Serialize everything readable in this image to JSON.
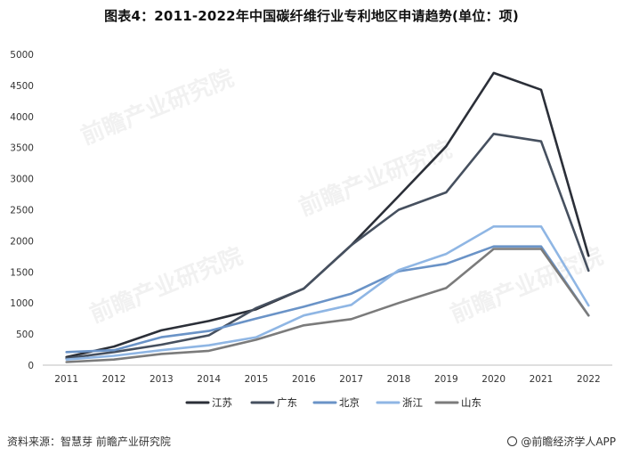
{
  "title": "图表4：2011-2022年中国碳纤维行业专利地区申请趋势(单位：项)",
  "footer": {
    "source": "资料来源：智慧芽 前瞻产业研究院",
    "brand": "@前瞻经济学人APP"
  },
  "watermark": "前瞻产业研究院",
  "chart_data": {
    "type": "line",
    "title": "图表4：2011-2022年中国碳纤维行业专利地区申请趋势(单位：项)",
    "xlabel": "",
    "ylabel": "",
    "x": [
      "2011",
      "2012",
      "2013",
      "2014",
      "2015",
      "2016",
      "2017",
      "2018",
      "2019",
      "2020",
      "2021",
      "2022"
    ],
    "ylim": [
      0,
      5000
    ],
    "yticks": [
      0,
      500,
      1000,
      1500,
      2000,
      2500,
      3000,
      3500,
      4000,
      4500,
      5000
    ],
    "grid": false,
    "legend_position": "bottom",
    "series": [
      {
        "name": "江苏",
        "color": "#2b2f38",
        "values": [
          130,
          300,
          560,
          710,
          900,
          1230,
          1930,
          2720,
          3520,
          4700,
          4430,
          1760
        ]
      },
      {
        "name": "广东",
        "color": "#46505f",
        "values": [
          110,
          210,
          330,
          480,
          920,
          1230,
          1930,
          2500,
          2780,
          3720,
          3600,
          1520
        ]
      },
      {
        "name": "北京",
        "color": "#6a93c7",
        "values": [
          210,
          240,
          450,
          550,
          750,
          940,
          1150,
          1510,
          1630,
          1910,
          1910,
          800
        ]
      },
      {
        "name": "浙江",
        "color": "#8fb6e4",
        "values": [
          90,
          150,
          240,
          320,
          450,
          800,
          970,
          1530,
          1790,
          2230,
          2230,
          960
        ]
      },
      {
        "name": "山东",
        "color": "#7b7b7b",
        "values": [
          50,
          90,
          180,
          230,
          410,
          640,
          740,
          1000,
          1240,
          1870,
          1870,
          800
        ]
      }
    ]
  }
}
